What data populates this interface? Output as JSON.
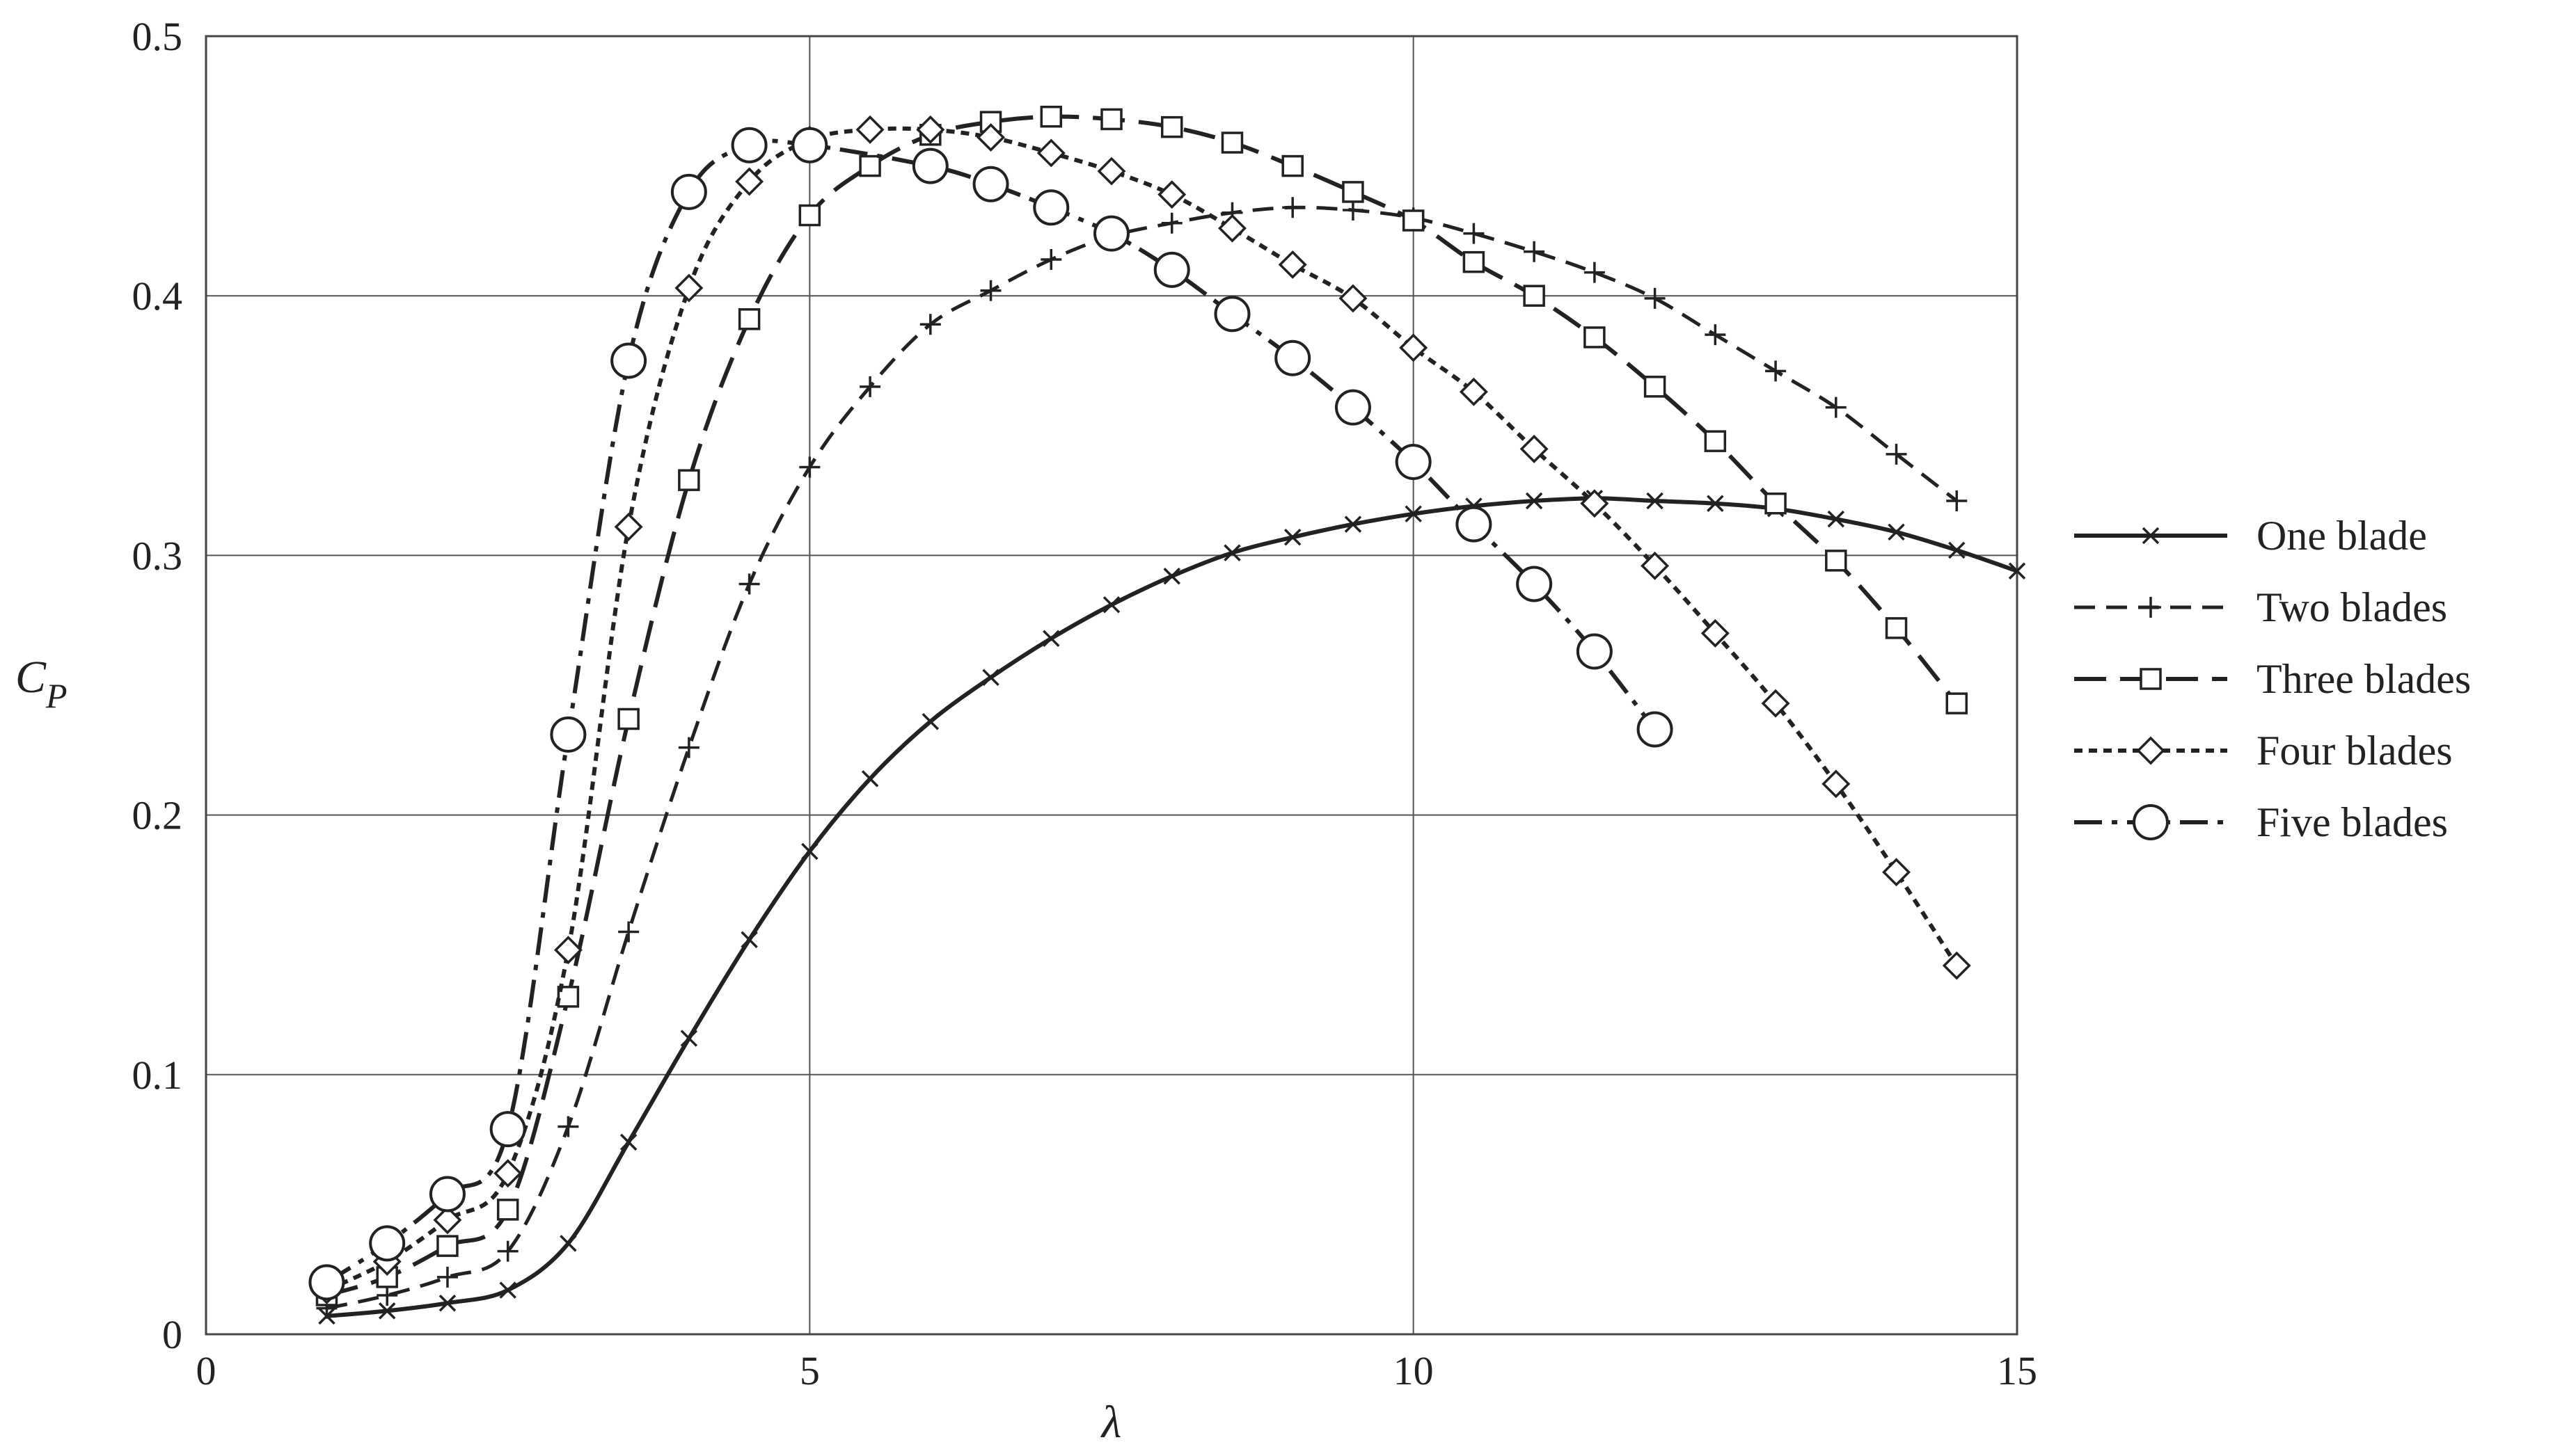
{
  "chart_data": {
    "type": "line",
    "title": "",
    "xlabel": "λ",
    "ylabel": "C",
    "ylabel_subscript": "P",
    "xlim": [
      0,
      15
    ],
    "ylim": [
      0,
      0.5
    ],
    "xticks": [
      0,
      5,
      10,
      15
    ],
    "yticks": [
      0,
      0.1,
      0.2,
      0.3,
      0.4,
      0.5
    ],
    "xtick_labels": [
      "0",
      "5",
      "10",
      "15"
    ],
    "ytick_labels": [
      "0",
      "0.1",
      "0.2",
      "0.3",
      "0.4",
      "0.5"
    ],
    "grid": true,
    "legend_position": "right",
    "series": [
      {
        "name": "One blade",
        "marker": "x",
        "line_style": "solid",
        "x": [
          1,
          1.5,
          2,
          2.5,
          3,
          3.5,
          4,
          4.5,
          5,
          5.5,
          6,
          6.5,
          7,
          7.5,
          8,
          8.5,
          9,
          9.5,
          10,
          10.5,
          11,
          11.5,
          12,
          12.5,
          13,
          13.5,
          14,
          14.5,
          15
        ],
        "y": [
          0.007,
          0.009,
          0.012,
          0.017,
          0.035,
          0.074,
          0.114,
          0.152,
          0.186,
          0.214,
          0.236,
          0.253,
          0.268,
          0.281,
          0.292,
          0.301,
          0.307,
          0.312,
          0.316,
          0.319,
          0.321,
          0.322,
          0.321,
          0.32,
          0.318,
          0.314,
          0.309,
          0.302,
          0.294
        ]
      },
      {
        "name": "Two blades",
        "marker": "+",
        "line_style": "dashed",
        "x": [
          1,
          1.5,
          2,
          2.5,
          3,
          3.5,
          4,
          4.5,
          5,
          5.5,
          6,
          6.5,
          7,
          7.5,
          8,
          8.5,
          9,
          9.5,
          10,
          10.5,
          11,
          11.5,
          12,
          12.5,
          13,
          13.5,
          14,
          14.5
        ],
        "y": [
          0.01,
          0.015,
          0.022,
          0.032,
          0.08,
          0.155,
          0.226,
          0.289,
          0.334,
          0.365,
          0.389,
          0.402,
          0.414,
          0.423,
          0.428,
          0.432,
          0.434,
          0.433,
          0.43,
          0.424,
          0.417,
          0.409,
          0.399,
          0.385,
          0.371,
          0.357,
          0.339,
          0.321
        ]
      },
      {
        "name": "Three blades",
        "marker": "square",
        "line_style": "long-dashed",
        "x": [
          1,
          1.5,
          2,
          2.5,
          3,
          3.5,
          4,
          4.5,
          5,
          5.5,
          6,
          6.5,
          7,
          7.5,
          8,
          8.5,
          9,
          9.5,
          10,
          10.5,
          11,
          11.5,
          12,
          12.5,
          13,
          13.5,
          14,
          14.5
        ],
        "y": [
          0.015,
          0.022,
          0.034,
          0.048,
          0.13,
          0.237,
          0.329,
          0.391,
          0.431,
          0.45,
          0.462,
          0.467,
          0.469,
          0.468,
          0.465,
          0.459,
          0.45,
          0.44,
          0.429,
          0.413,
          0.4,
          0.384,
          0.365,
          0.344,
          0.32,
          0.298,
          0.272,
          0.243
        ]
      },
      {
        "name": "Four blades",
        "marker": "diamond",
        "line_style": "dotted",
        "x": [
          1,
          1.5,
          2,
          2.5,
          3,
          3.5,
          4,
          4.5,
          5,
          5.5,
          6,
          6.5,
          7,
          7.5,
          8,
          8.5,
          9,
          9.5,
          10,
          10.5,
          11,
          11.5,
          12,
          12.5,
          13,
          13.5,
          14,
          14.5
        ],
        "y": [
          0.017,
          0.028,
          0.044,
          0.062,
          0.148,
          0.311,
          0.403,
          0.444,
          0.46,
          0.464,
          0.464,
          0.461,
          0.455,
          0.448,
          0.439,
          0.426,
          0.412,
          0.399,
          0.38,
          0.363,
          0.341,
          0.32,
          0.296,
          0.27,
          0.243,
          0.212,
          0.178,
          0.142
        ]
      },
      {
        "name": "Five blades",
        "marker": "circle",
        "line_style": "dash-dot",
        "x": [
          1,
          1.5,
          2,
          2.5,
          3,
          3.5,
          4,
          4.5,
          5,
          6,
          6.5,
          7,
          7.5,
          8,
          8.5,
          9,
          9.5,
          10,
          10.5,
          11,
          11.5,
          12
        ],
        "y": [
          0.02,
          0.035,
          0.054,
          0.079,
          0.231,
          0.375,
          0.44,
          0.458,
          0.458,
          0.45,
          0.443,
          0.434,
          0.424,
          0.41,
          0.393,
          0.376,
          0.357,
          0.336,
          0.312,
          0.289,
          0.263,
          0.233
        ]
      }
    ]
  }
}
